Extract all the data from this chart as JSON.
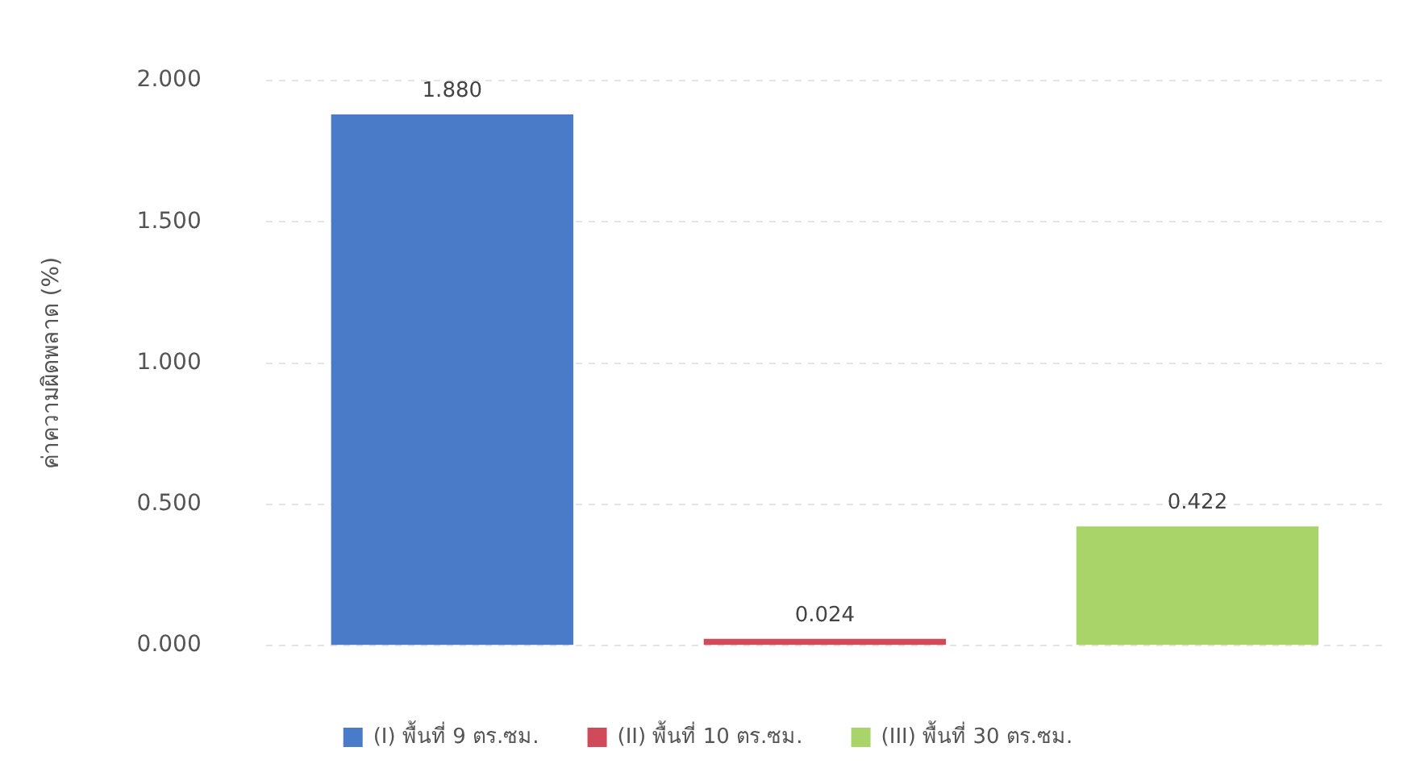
{
  "chart_data": {
    "type": "bar",
    "ylabel": "ค่าความผิดพลาด (%)",
    "categories": [
      null,
      null,
      null
    ],
    "series": [
      {
        "name": "(I) พื้นที่ 9 ตร.ซม.",
        "color": "#4a7bc8",
        "values": [
          1.88,
          null,
          null
        ],
        "value_labels": [
          "1.880",
          null,
          null
        ]
      },
      {
        "name": "(II) พื้นที่ 10 ตร.ซม.",
        "color": "#d04a5a",
        "values": [
          null,
          0.024,
          null
        ],
        "value_labels": [
          null,
          "0.024",
          null
        ]
      },
      {
        "name": "(III) พื้นที่ 30 ตร.ซม.",
        "color": "#a8d46a",
        "values": [
          null,
          null,
          0.422
        ],
        "value_labels": [
          null,
          null,
          "0.422"
        ]
      }
    ],
    "ylim": [
      0,
      2
    ],
    "yticks": [
      {
        "value": 0,
        "label": "0.000"
      },
      {
        "value": 0.5,
        "label": "0.500"
      },
      {
        "value": 1,
        "label": "1.000"
      },
      {
        "value": 1.5,
        "label": "1.500"
      },
      {
        "value": 2,
        "label": "2.000"
      }
    ],
    "grid": "y",
    "legend": "bottom"
  }
}
